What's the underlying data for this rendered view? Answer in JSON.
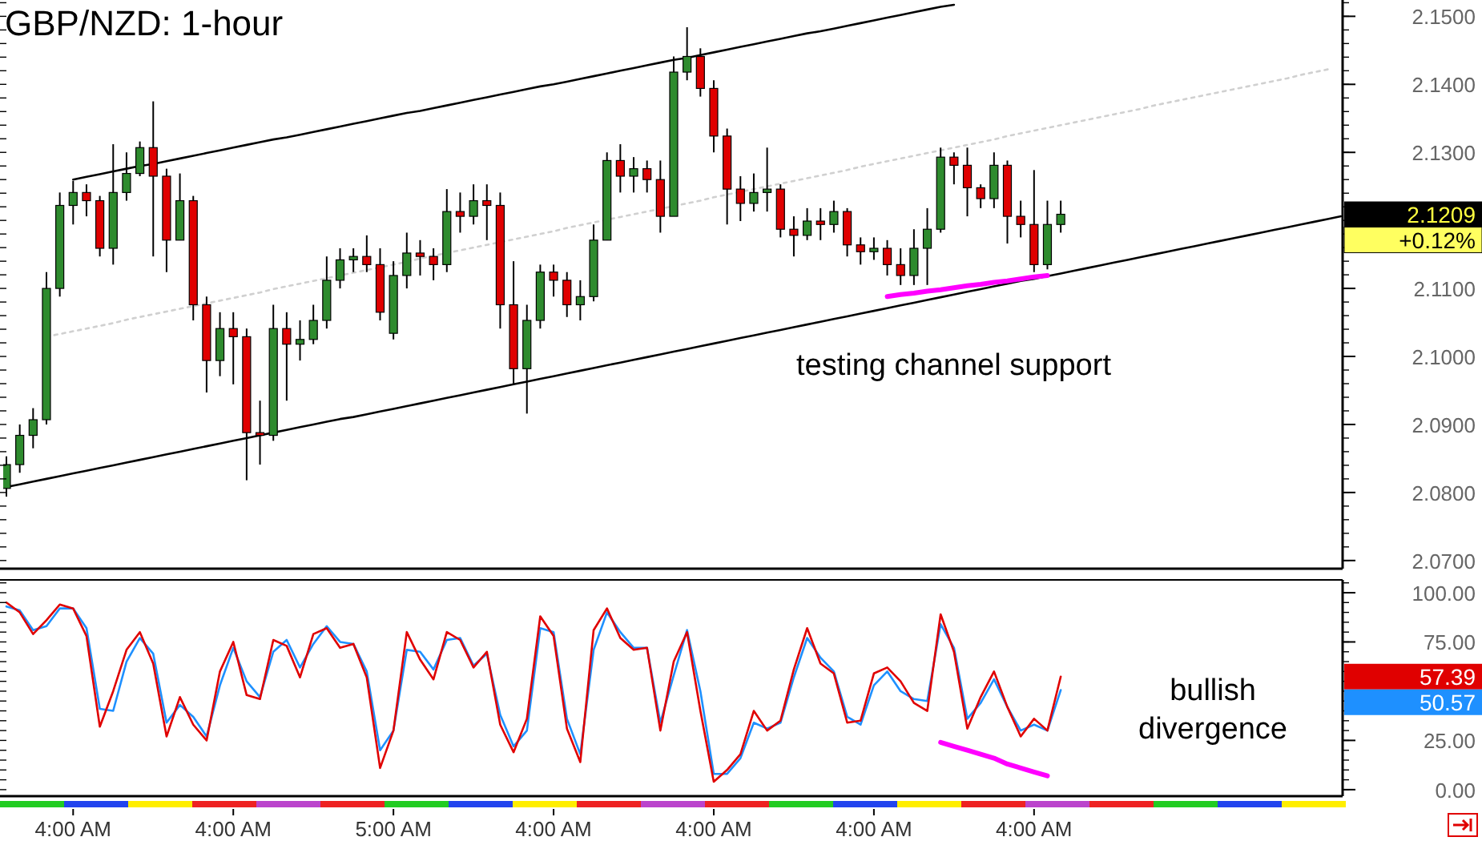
{
  "chart_data": [
    {
      "type": "candlestick",
      "title": "GBP/NZD: 1-hour",
      "tick_labels": "y",
      "categories": [
        null,
        null,
        null,
        null,
        null,
        null,
        null,
        null,
        null,
        null,
        null,
        null,
        null,
        null,
        null,
        null,
        null,
        null,
        null,
        null,
        null,
        null,
        null,
        null,
        null,
        null,
        null,
        null,
        null,
        null,
        null,
        null,
        null,
        null,
        null,
        null,
        null,
        null,
        null,
        null,
        null,
        null,
        null,
        null,
        null,
        null,
        null,
        null,
        null,
        null,
        null,
        null,
        null,
        null,
        null,
        null,
        null,
        null,
        null,
        null,
        null,
        null,
        null,
        null,
        null,
        null,
        null,
        null,
        null,
        null,
        null,
        null,
        null,
        null,
        null,
        null,
        null,
        null,
        null,
        null,
        null,
        null,
        null,
        null,
        null,
        null,
        null,
        null,
        null,
        null,
        null,
        null,
        null,
        null,
        null,
        null,
        null,
        null,
        null,
        null,
        null
      ],
      "ylim": [
        2.0688,
        2.1524
      ],
      "yticks": [
        {
          "value": 2.07,
          "label": "2.0700"
        },
        {
          "value": 2.08,
          "label": "2.0800"
        },
        {
          "value": 2.09,
          "label": "2.0900"
        },
        {
          "value": 2.1,
          "label": "2.1000"
        },
        {
          "value": 2.11,
          "label": "2.1100"
        },
        {
          "value": 2.13,
          "label": "2.1300"
        },
        {
          "value": 2.14,
          "label": "2.1400"
        },
        {
          "value": 2.15,
          "label": "2.1500"
        }
      ],
      "ohlc": [
        [
          2.0806,
          2.0853,
          2.0794,
          2.0841
        ],
        [
          2.0841,
          2.09,
          2.0829,
          2.0884
        ],
        [
          2.0884,
          2.0924,
          2.0865,
          2.0907
        ],
        [
          2.0907,
          2.1124,
          2.09,
          2.11
        ],
        [
          2.11,
          2.1241,
          2.1088,
          2.1222
        ],
        [
          2.1222,
          2.1258,
          2.1194,
          2.1241
        ],
        [
          2.1241,
          2.1253,
          2.1206,
          2.1229
        ],
        [
          2.1229,
          2.1236,
          2.1147,
          2.1159
        ],
        [
          2.1159,
          2.1312,
          2.1135,
          2.1241
        ],
        [
          2.1241,
          2.13,
          2.1229,
          2.1269
        ],
        [
          2.1269,
          2.1316,
          2.1265,
          2.1307
        ],
        [
          2.1307,
          2.1375,
          2.1147,
          2.1265
        ],
        [
          2.1265,
          2.1276,
          2.1124,
          2.1171
        ],
        [
          2.1171,
          2.1269,
          2.1171,
          2.1229
        ],
        [
          2.1229,
          2.1236,
          2.1053,
          2.1076
        ],
        [
          2.1076,
          2.1088,
          2.0947,
          2.0994
        ],
        [
          2.0994,
          2.1065,
          2.0971,
          2.1041
        ],
        [
          2.1041,
          2.1065,
          2.0959,
          2.1029
        ],
        [
          2.1029,
          2.1041,
          2.0818,
          2.0888
        ],
        [
          2.0888,
          2.0935,
          2.0841,
          2.0884
        ],
        [
          2.0884,
          2.1076,
          2.0876,
          2.1041
        ],
        [
          2.1041,
          2.1065,
          2.0935,
          2.1018
        ],
        [
          2.1018,
          2.1053,
          2.0994,
          2.1025
        ],
        [
          2.1025,
          2.1076,
          2.1018,
          2.1053
        ],
        [
          2.1053,
          2.1147,
          2.1041,
          2.1112
        ],
        [
          2.1112,
          2.1159,
          2.11,
          2.1142
        ],
        [
          2.1142,
          2.1159,
          2.1124,
          2.1147
        ],
        [
          2.1147,
          2.1178,
          2.1124,
          2.1135
        ],
        [
          2.1135,
          2.1159,
          2.1053,
          2.1065
        ],
        [
          2.1034,
          2.114,
          2.1025,
          2.1119
        ],
        [
          2.1119,
          2.1182,
          2.11,
          2.1152
        ],
        [
          2.1152,
          2.1171,
          2.1119,
          2.1147
        ],
        [
          2.1147,
          2.1159,
          2.1112,
          2.1135
        ],
        [
          2.1135,
          2.1246,
          2.1124,
          2.1213
        ],
        [
          2.1213,
          2.1241,
          2.1182,
          2.1206
        ],
        [
          2.1206,
          2.1253,
          2.1194,
          2.1229
        ],
        [
          2.1229,
          2.1253,
          2.1171,
          2.1222
        ],
        [
          2.1222,
          2.1241,
          2.1041,
          2.1076
        ],
        [
          2.1076,
          2.114,
          2.0959,
          2.0982
        ],
        [
          2.0982,
          2.1076,
          2.0916,
          2.1053
        ],
        [
          2.1053,
          2.1135,
          2.1041,
          2.1124
        ],
        [
          2.1124,
          2.1135,
          2.1088,
          2.1112
        ],
        [
          2.1112,
          2.1124,
          2.1058,
          2.1076
        ],
        [
          2.1076,
          2.1112,
          2.1053,
          2.1088
        ],
        [
          2.1088,
          2.1194,
          2.1081,
          2.1171
        ],
        [
          2.1171,
          2.13,
          2.1171,
          2.1288
        ],
        [
          2.1288,
          2.1312,
          2.1241,
          2.1265
        ],
        [
          2.1265,
          2.1293,
          2.1241,
          2.1276
        ],
        [
          2.1276,
          2.1288,
          2.1241,
          2.126
        ],
        [
          2.126,
          2.1288,
          2.1182,
          2.1206
        ],
        [
          2.1206,
          2.1441,
          2.1206,
          2.1418
        ],
        [
          2.1418,
          2.1484,
          2.1406,
          2.1441
        ],
        [
          2.1441,
          2.1453,
          2.1382,
          2.1394
        ],
        [
          2.1394,
          2.1406,
          2.13,
          2.1324
        ],
        [
          2.1324,
          2.1335,
          2.1194,
          2.1246
        ],
        [
          2.1246,
          2.1265,
          2.1199,
          2.1225
        ],
        [
          2.1225,
          2.1269,
          2.1213,
          2.1241
        ],
        [
          2.1241,
          2.1307,
          2.1213,
          2.1246
        ],
        [
          2.1246,
          2.1253,
          2.1175,
          2.1187
        ],
        [
          2.1187,
          2.1206,
          2.1147,
          2.1178
        ],
        [
          2.1178,
          2.1218,
          2.1171,
          2.1199
        ],
        [
          2.1199,
          2.1218,
          2.1171,
          2.1194
        ],
        [
          2.1194,
          2.1229,
          2.1182,
          2.1213
        ],
        [
          2.1213,
          2.1218,
          2.1147,
          2.1164
        ],
        [
          2.1164,
          2.1175,
          2.1135,
          2.1154
        ],
        [
          2.1154,
          2.1175,
          2.1142,
          2.1159
        ],
        [
          2.1159,
          2.1171,
          2.1119,
          2.1135
        ],
        [
          2.1135,
          2.1159,
          2.1105,
          2.1119
        ],
        [
          2.1119,
          2.1187,
          2.1105,
          2.1159
        ],
        [
          2.1159,
          2.1218,
          2.1105,
          2.1187
        ],
        [
          2.1187,
          2.1307,
          2.1182,
          2.1293
        ],
        [
          2.1293,
          2.13,
          2.1253,
          2.1281
        ],
        [
          2.1281,
          2.1307,
          2.1206,
          2.1248
        ],
        [
          2.1248,
          2.1253,
          2.1218,
          2.1232
        ],
        [
          2.1232,
          2.13,
          2.1218,
          2.1281
        ],
        [
          2.1281,
          2.1288,
          2.1166,
          2.1206
        ],
        [
          2.1206,
          2.1229,
          2.1175,
          2.1194
        ],
        [
          2.1194,
          2.1274,
          2.1124,
          2.1135
        ],
        [
          2.1135,
          2.1229,
          2.1128,
          2.1194
        ],
        [
          2.1194,
          2.1229,
          2.1182,
          2.1209
        ],
        null,
        null,
        null,
        null,
        null,
        null,
        null,
        null,
        null,
        null,
        null,
        null,
        null,
        null,
        null,
        null,
        null,
        null,
        null,
        null,
        null
      ],
      "series": [
        {
          "type": "line",
          "color": "#000000",
          "line_style": "solid",
          "values": [
            null,
            null,
            null,
            null,
            null,
            2.126,
            2.1264,
            2.1268,
            2.1272,
            2.1276,
            2.128,
            2.1283,
            2.1287,
            2.1291,
            2.1295,
            2.1299,
            2.1303,
            2.1307,
            2.1311,
            2.1315,
            2.1319,
            2.1322,
            2.1326,
            2.133,
            2.1334,
            2.1338,
            2.1342,
            2.1346,
            2.135,
            2.1354,
            2.1358,
            2.1361,
            2.1365,
            2.1369,
            2.1373,
            2.1377,
            2.1381,
            2.1385,
            2.1389,
            2.1393,
            2.1397,
            2.14,
            2.1404,
            2.1408,
            2.1412,
            2.1416,
            2.142,
            2.1424,
            2.1428,
            2.1432,
            2.1436,
            2.1439,
            2.1443,
            2.1447,
            2.1451,
            2.1455,
            2.1459,
            2.1463,
            2.1467,
            2.1471,
            2.1475,
            2.1478,
            2.1482,
            2.1486,
            2.149,
            2.1494,
            2.1498,
            2.1502,
            2.1506,
            2.151,
            2.1514,
            2.1517,
            null,
            null,
            null,
            null,
            null,
            null,
            null,
            null,
            null,
            null,
            null,
            null,
            null,
            null,
            null,
            null,
            null,
            null,
            null,
            null,
            null,
            null,
            null,
            null,
            null,
            null,
            null,
            null,
            null
          ]
        },
        {
          "type": "line",
          "color": "#000000",
          "line_style": "solid",
          "values": [
            2.0808,
            2.0812,
            2.0816,
            2.082,
            2.0824,
            2.0828,
            2.0832,
            2.0836,
            2.084,
            2.0844,
            2.0848,
            2.0852,
            2.0856,
            2.086,
            2.0864,
            2.0868,
            2.0872,
            2.0876,
            2.088,
            2.0884,
            2.0888,
            2.0892,
            2.0896,
            2.09,
            2.0904,
            2.0908,
            2.0911,
            2.0915,
            2.0919,
            2.0923,
            2.0927,
            2.0931,
            2.0935,
            2.0939,
            2.0943,
            2.0947,
            2.0951,
            2.0955,
            2.0959,
            2.0963,
            2.0967,
            2.0971,
            2.0975,
            2.0979,
            2.0983,
            2.0987,
            2.0991,
            2.0995,
            2.0999,
            2.1003,
            2.1007,
            2.1011,
            2.1015,
            2.1019,
            2.1023,
            2.1027,
            2.1031,
            2.1035,
            2.1039,
            2.1043,
            2.1047,
            2.1051,
            2.1055,
            2.1059,
            2.1063,
            2.1067,
            2.1071,
            2.1075,
            2.1079,
            2.1083,
            2.1087,
            2.1091,
            2.1095,
            2.1099,
            2.1103,
            2.1107,
            2.1111,
            2.1114,
            2.1118,
            2.1122,
            2.1126,
            2.113,
            2.1134,
            2.1138,
            2.1142,
            2.1146,
            2.115,
            2.1154,
            2.1158,
            2.1162,
            2.1166,
            2.117,
            2.1174,
            2.1178,
            2.1182,
            2.1186,
            2.119,
            2.1194,
            2.1198,
            2.1202,
            2.1206
          ]
        },
        {
          "type": "line",
          "color": "#d0d0d0",
          "line_style": "dotted",
          "values": [
            null,
            null,
            null,
            2.1029,
            2.1033,
            2.1037,
            2.1041,
            2.1045,
            2.1049,
            2.1054,
            2.1058,
            2.1062,
            2.1066,
            2.107,
            2.1074,
            2.1078,
            2.1082,
            2.1086,
            2.109,
            2.1094,
            2.1099,
            2.1103,
            2.1107,
            2.1111,
            2.1115,
            2.1119,
            2.1123,
            2.1127,
            2.1131,
            2.1135,
            2.1139,
            2.1144,
            2.1148,
            2.1152,
            2.1156,
            2.116,
            2.1164,
            2.1168,
            2.1172,
            2.1176,
            2.118,
            2.1184,
            2.1189,
            2.1193,
            2.1197,
            2.1201,
            2.1205,
            2.1209,
            2.1213,
            2.1217,
            2.1221,
            2.1225,
            2.1229,
            2.1234,
            2.1238,
            2.1242,
            2.1246,
            2.125,
            2.1254,
            2.1258,
            2.1262,
            2.1266,
            2.127,
            2.1274,
            2.1279,
            2.1283,
            2.1287,
            2.1291,
            2.1295,
            2.1299,
            2.1303,
            2.1307,
            2.1311,
            2.1315,
            2.1319,
            2.1324,
            2.1328,
            2.1332,
            2.1336,
            2.134,
            2.1344,
            2.1348,
            2.1352,
            2.1356,
            2.136,
            2.1364,
            2.1369,
            2.1373,
            2.1377,
            2.1381,
            2.1385,
            2.1389,
            2.1393,
            2.1397,
            2.1401,
            2.1405,
            2.1409,
            2.1414,
            2.1418,
            2.1422,
            null
          ]
        },
        {
          "type": "line",
          "color": "#ff00ff",
          "line_style": "solid",
          "values": [
            null,
            null,
            null,
            null,
            null,
            null,
            null,
            null,
            null,
            null,
            null,
            null,
            null,
            null,
            null,
            null,
            null,
            null,
            null,
            null,
            null,
            null,
            null,
            null,
            null,
            null,
            null,
            null,
            null,
            null,
            null,
            null,
            null,
            null,
            null,
            null,
            null,
            null,
            null,
            null,
            null,
            null,
            null,
            null,
            null,
            null,
            null,
            null,
            null,
            null,
            null,
            null,
            null,
            null,
            null,
            null,
            null,
            null,
            null,
            null,
            null,
            null,
            null,
            null,
            null,
            null,
            2.1088,
            2.1091,
            2.1093,
            2.1096,
            2.1098,
            2.1101,
            2.1104,
            2.1106,
            2.1109,
            2.1111,
            2.1114,
            2.1117,
            2.1119,
            null,
            null,
            null,
            null,
            null,
            null,
            null,
            null,
            null,
            null,
            null,
            null,
            null,
            null,
            null,
            null,
            null,
            null,
            null,
            null,
            null,
            null
          ]
        }
      ],
      "annotations": [
        "testing channel support",
        "2.1209",
        "+0.12%"
      ]
    },
    {
      "type": "line",
      "categories": [
        null,
        null,
        null,
        null,
        null,
        "4:00 AM",
        null,
        null,
        null,
        null,
        null,
        null,
        null,
        null,
        null,
        null,
        null,
        "4:00 AM",
        null,
        null,
        null,
        null,
        null,
        null,
        null,
        null,
        null,
        null,
        null,
        "5:00 AM",
        null,
        null,
        null,
        null,
        null,
        null,
        null,
        null,
        null,
        null,
        null,
        "4:00 AM",
        null,
        null,
        null,
        null,
        null,
        null,
        null,
        null,
        null,
        null,
        null,
        "4:00 AM",
        null,
        null,
        null,
        null,
        null,
        null,
        null,
        null,
        null,
        null,
        null,
        "4:00 AM",
        null,
        null,
        null,
        null,
        null,
        null,
        null,
        null,
        null,
        null,
        null,
        "4:00 AM",
        null,
        null,
        null,
        null,
        null,
        null,
        null,
        null,
        null,
        null,
        null,
        null,
        null,
        null,
        null,
        null,
        null,
        null,
        null,
        null,
        null,
        null,
        null
      ],
      "ylim": [
        -3.3,
        106.5
      ],
      "yticks": [
        {
          "value": 0,
          "label": "0.00"
        },
        {
          "value": 25,
          "label": "25.00"
        },
        {
          "value": 75,
          "label": "75.00"
        },
        {
          "value": 100,
          "label": "100.00"
        }
      ],
      "series": [
        {
          "color": "#ff00ff",
          "values": [
            null,
            null,
            null,
            null,
            null,
            null,
            null,
            null,
            null,
            null,
            null,
            null,
            null,
            null,
            null,
            null,
            null,
            null,
            null,
            null,
            null,
            null,
            null,
            null,
            null,
            null,
            null,
            null,
            null,
            null,
            null,
            null,
            null,
            null,
            null,
            null,
            null,
            null,
            null,
            null,
            null,
            null,
            null,
            null,
            null,
            null,
            null,
            null,
            null,
            null,
            null,
            null,
            null,
            null,
            null,
            null,
            null,
            null,
            null,
            null,
            null,
            null,
            null,
            null,
            null,
            null,
            null,
            null,
            null,
            null,
            24,
            22,
            20,
            18,
            16,
            13,
            11,
            9,
            7,
            null,
            null,
            null,
            null,
            null,
            null,
            null,
            null,
            null,
            null,
            null,
            null,
            null,
            null,
            null,
            null,
            null,
            null,
            null,
            null,
            null,
            null
          ]
        },
        {
          "color": "#1e90ff",
          "values": [
            93,
            91,
            81,
            83,
            92,
            92,
            82,
            41,
            40,
            65,
            77,
            69,
            34,
            43,
            37,
            27,
            53,
            72,
            55,
            47,
            70,
            76,
            62,
            74,
            83,
            75,
            74,
            60,
            20,
            30,
            71,
            70,
            61,
            76,
            77,
            63,
            69,
            38,
            22,
            30,
            82,
            80,
            36,
            18,
            71,
            90,
            80,
            72,
            72,
            34,
            58,
            81,
            50,
            8,
            8,
            16,
            34,
            31,
            34,
            57,
            77,
            67,
            60,
            37,
            33,
            53,
            60,
            50,
            46,
            45,
            84,
            72,
            36,
            44,
            56,
            42,
            30,
            33,
            30,
            50.57,
            null,
            null,
            null,
            null,
            null,
            null,
            null,
            null,
            null,
            null,
            null,
            null,
            null,
            null,
            null,
            null,
            null,
            null,
            null,
            null,
            null
          ]
        },
        {
          "color": "#e00000",
          "values": [
            95,
            90,
            79,
            86,
            94,
            92,
            78,
            32,
            50,
            71,
            80,
            64,
            27,
            47,
            33,
            25,
            60,
            75,
            48,
            46,
            76,
            73,
            57,
            79,
            82,
            72,
            74,
            57,
            11,
            30,
            80,
            66,
            56,
            80,
            76,
            62,
            70,
            33,
            19,
            36,
            88,
            78,
            31,
            14,
            81,
            92,
            77,
            71,
            72,
            30,
            65,
            80,
            40,
            4,
            10,
            18,
            40,
            30,
            35,
            61,
            82,
            64,
            59,
            34,
            35,
            59,
            62,
            55,
            44,
            40,
            89,
            70,
            31,
            47,
            60,
            42,
            27,
            36,
            30,
            57.39,
            null,
            null,
            null,
            null,
            null,
            null,
            null,
            null,
            null,
            null,
            null,
            null,
            null,
            null,
            null,
            null,
            null,
            null,
            null,
            null,
            null
          ]
        }
      ],
      "annotations": [
        "bullish divergence",
        "57.39",
        "50.57"
      ]
    }
  ]
}
